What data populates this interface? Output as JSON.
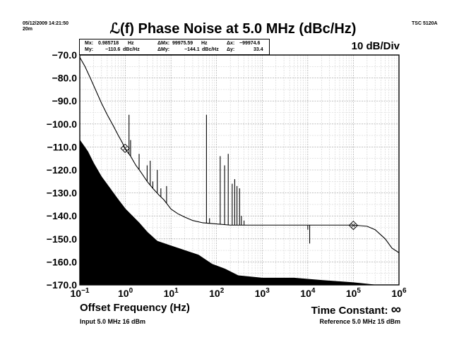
{
  "header": {
    "timestamp": "05/12/2009 14:21:50",
    "duration": "20m",
    "instrument": "TSC 5120A"
  },
  "readout": {
    "mx_label": "Mx:",
    "mx_value": "0.985718",
    "mx_unit": "Hz",
    "my_label": "My:",
    "my_value": "−110.6",
    "my_unit": "dBc/Hz",
    "dmx_label": "ΔMx:",
    "dmx_value": "99975.59",
    "dmx_unit": "Hz",
    "dmy_label": "ΔMy:",
    "dmy_value": "−144.1",
    "dmy_unit": "dBc/Hz",
    "dx_label": "Δx:",
    "dx_value": "−99974.6",
    "dy_label": "Δy:",
    "dy_value": "33.4"
  },
  "footer": {
    "time_constant_label": "Time Constant:",
    "time_constant_symbol": "∞",
    "input_info": "Input 5.0 MHz 16 dBm",
    "reference_info": "Reference 5.0 MHz 15 dBm"
  },
  "chart_data": {
    "type": "line",
    "title": "ℒ(f) Phase Noise at 5.0 MHz (dBc/Hz)",
    "scale_label": "10 dB/Div",
    "xlabel": "Offset Frequency (Hz)",
    "ylabel": "",
    "x_scale": "log",
    "xlim": [
      0.1,
      1000000
    ],
    "ylim": [
      -170,
      -70
    ],
    "grid": true,
    "y_ticks": [
      "−70.0",
      "−80.0",
      "−90.0",
      "−100.0",
      "−110.0",
      "−120.0",
      "−130.0",
      "−140.0",
      "−150.0",
      "−160.0",
      "−170.0"
    ],
    "y_tick_values": [
      -70,
      -80,
      -90,
      -100,
      -110,
      -120,
      -130,
      -140,
      -150,
      -160,
      -170
    ],
    "x_ticks": [
      {
        "value": 0.1,
        "base": "10",
        "exp": "−1"
      },
      {
        "value": 1,
        "base": "10",
        "exp": "0"
      },
      {
        "value": 10,
        "base": "10",
        "exp": "1"
      },
      {
        "value": 100,
        "base": "10",
        "exp": "2"
      },
      {
        "value": 1000,
        "base": "10",
        "exp": "3"
      },
      {
        "value": 10000,
        "base": "10",
        "exp": "4"
      },
      {
        "value": 100000,
        "base": "10",
        "exp": "5"
      },
      {
        "value": 1000000,
        "base": "10",
        "exp": "6"
      }
    ],
    "series": [
      {
        "kind": "phase_noise_trace",
        "color": "#000000",
        "points": [
          [
            0.1,
            -71
          ],
          [
            0.13,
            -75
          ],
          [
            0.17,
            -80
          ],
          [
            0.22,
            -85
          ],
          [
            0.3,
            -91
          ],
          [
            0.4,
            -96
          ],
          [
            0.55,
            -101
          ],
          [
            0.7,
            -105
          ],
          [
            0.85,
            -108
          ],
          [
            1.0,
            -111
          ],
          [
            1.3,
            -114
          ],
          [
            1.7,
            -118
          ],
          [
            2.2,
            -121
          ],
          [
            3.0,
            -125
          ],
          [
            4.0,
            -128
          ],
          [
            5.5,
            -131
          ],
          [
            7.0,
            -133
          ],
          [
            10,
            -137
          ],
          [
            14,
            -139
          ],
          [
            20,
            -140.5
          ],
          [
            30,
            -142
          ],
          [
            50,
            -143
          ],
          [
            100,
            -143.5
          ],
          [
            200,
            -144
          ],
          [
            500,
            -144
          ],
          [
            1000,
            -144
          ],
          [
            10000,
            -144
          ],
          [
            50000,
            -144
          ],
          [
            100000,
            -144
          ],
          [
            200000,
            -144.5
          ],
          [
            300000,
            -146
          ],
          [
            500000,
            -150
          ],
          [
            700000,
            -154
          ],
          [
            1000000,
            -156
          ]
        ]
      },
      {
        "kind": "spurs",
        "color": "#000000",
        "points": [
          [
            1.2,
            -96
          ],
          [
            1.3,
            -107
          ],
          [
            2.0,
            -113
          ],
          [
            3.0,
            -118
          ],
          [
            3.5,
            -116
          ],
          [
            4.0,
            -125
          ],
          [
            5.0,
            -120
          ],
          [
            6.0,
            -128
          ],
          [
            8.0,
            -127
          ],
          [
            60,
            -96
          ],
          [
            70,
            -141
          ],
          [
            120,
            -114
          ],
          [
            150,
            -118
          ],
          [
            180,
            -113
          ],
          [
            220,
            -126
          ],
          [
            250,
            -124
          ],
          [
            280,
            -127
          ],
          [
            320,
            -128
          ],
          [
            350,
            -140
          ],
          [
            400,
            -142
          ],
          [
            10000,
            -146
          ],
          [
            11000,
            -152
          ]
        ]
      },
      {
        "kind": "noise_floor_fill",
        "color": "#000000",
        "points": [
          [
            0.1,
            -107
          ],
          [
            0.15,
            -112
          ],
          [
            0.2,
            -117
          ],
          [
            0.3,
            -123
          ],
          [
            0.5,
            -129
          ],
          [
            0.7,
            -133
          ],
          [
            1.0,
            -137
          ],
          [
            2.0,
            -143
          ],
          [
            3.0,
            -147
          ],
          [
            5.0,
            -151
          ],
          [
            10,
            -153
          ],
          [
            20,
            -155
          ],
          [
            40,
            -157
          ],
          [
            80,
            -161
          ],
          [
            150,
            -163
          ],
          [
            300,
            -166
          ],
          [
            1000,
            -167
          ],
          [
            5000,
            -167
          ],
          [
            20000,
            -168
          ],
          [
            100000,
            -169
          ],
          [
            300000,
            -170
          ],
          [
            1000000,
            -170
          ]
        ]
      }
    ],
    "markers": [
      {
        "x": 0.985718,
        "y": -110.6
      },
      {
        "x": 100000,
        "y": -144.1
      }
    ]
  }
}
